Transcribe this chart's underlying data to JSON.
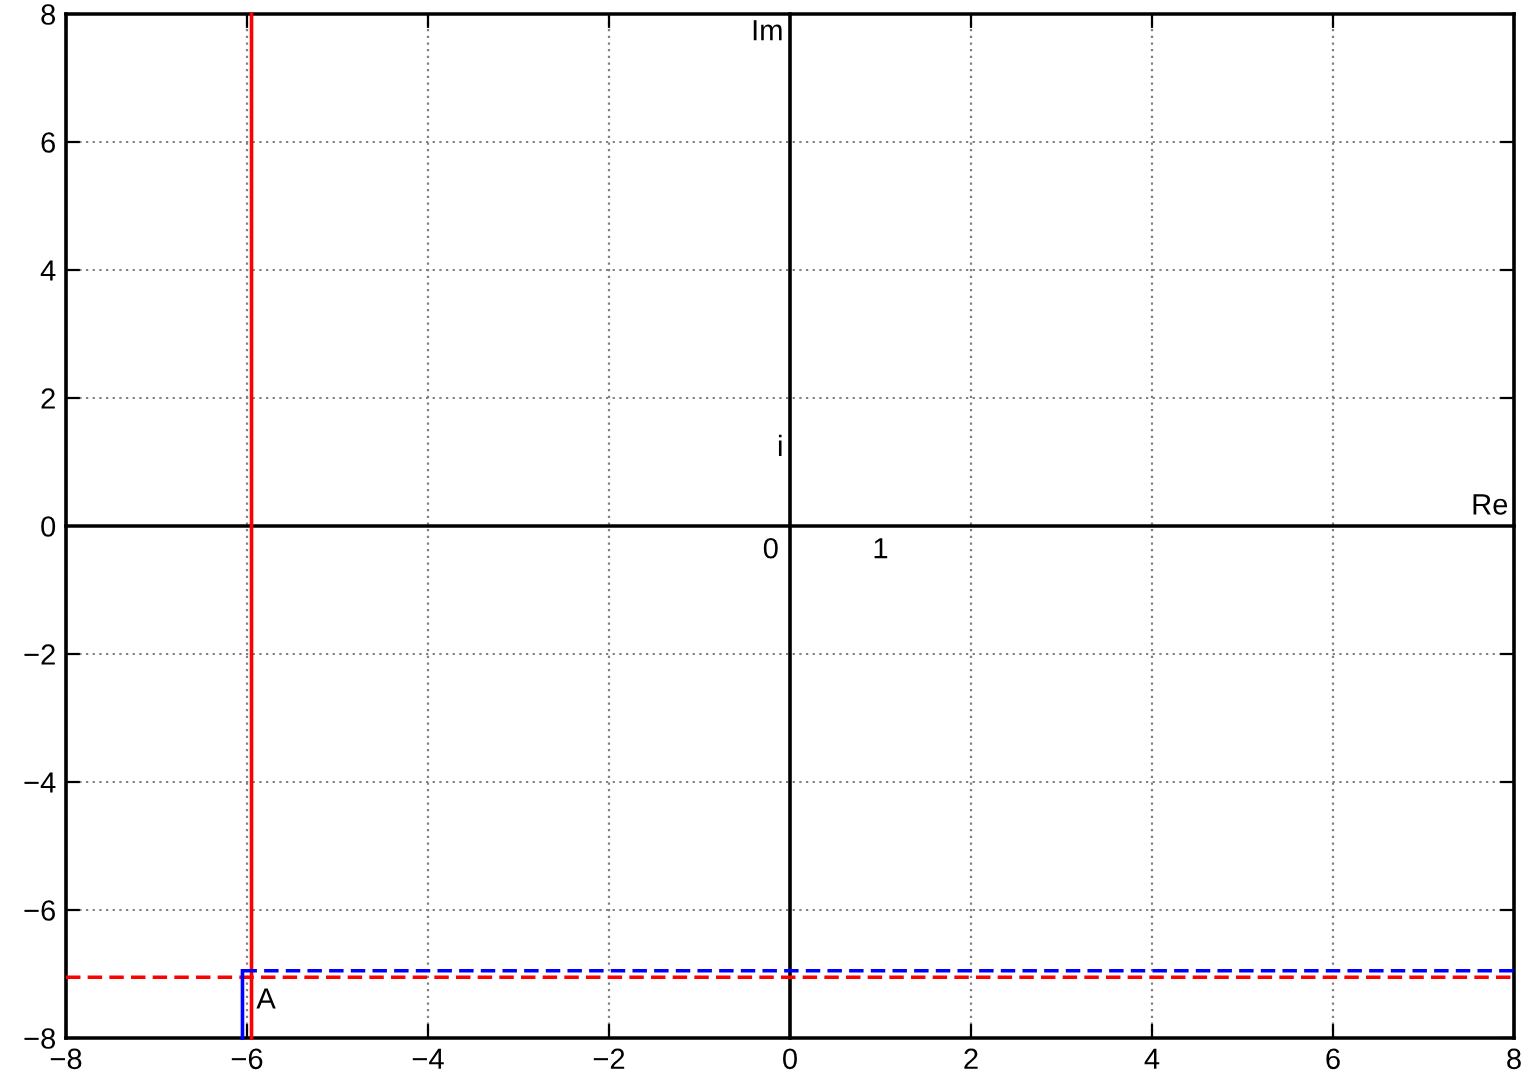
{
  "chart_data": {
    "type": "line",
    "series": [
      {
        "color": "#000000",
        "x": [
          0,
          0
        ],
        "values": [
          -8,
          8
        ],
        "line_style": "solid"
      },
      {
        "color": "#000000",
        "x": [
          -8,
          8
        ],
        "values": [
          0,
          0
        ],
        "line_style": "solid"
      },
      {
        "color": "#ff0000",
        "x": [
          -5.95,
          -5.95
        ],
        "values": [
          -8,
          8
        ],
        "line_style": "solid"
      },
      {
        "color": "#ff0000",
        "x": [
          -8,
          8
        ],
        "values": [
          -7.05,
          -7.05
        ],
        "line_style": "dashed"
      },
      {
        "color": "#0000ff",
        "x": [
          -6.05,
          8
        ],
        "values": [
          -6.95,
          -6.95
        ],
        "line_style": "dashed"
      },
      {
        "color": "#0000ff",
        "x": [
          -6.05,
          -6.05
        ],
        "values": [
          -8,
          -6.95
        ],
        "line_style": "solid"
      }
    ],
    "annotations": [
      {
        "text": "A",
        "x": -6.05,
        "y": -6.95
      },
      {
        "text": "0",
        "x": 0,
        "y": 0
      },
      {
        "text": "1",
        "x": 1,
        "y": 0
      },
      "i",
      "Im",
      {
        "text": "Re",
        "x": 8,
        "y": 0
      }
    ],
    "xlim": [
      -8,
      8
    ],
    "ylim": [
      -8,
      8
    ],
    "xticks": [
      {
        "value": -8,
        "label": "−8"
      },
      {
        "value": -6,
        "label": "−6"
      },
      {
        "value": -4,
        "label": "−4"
      },
      {
        "value": -2,
        "label": "−2"
      },
      0,
      2,
      4,
      6,
      8
    ],
    "yticks": [
      {
        "value": -8,
        "label": "−8"
      },
      {
        "value": -6,
        "label": "−6"
      },
      {
        "value": -4,
        "label": "−4"
      },
      {
        "value": -2,
        "label": "−2"
      },
      0,
      2,
      4,
      6,
      8
    ],
    "grid": true,
    "marker": "none"
  }
}
